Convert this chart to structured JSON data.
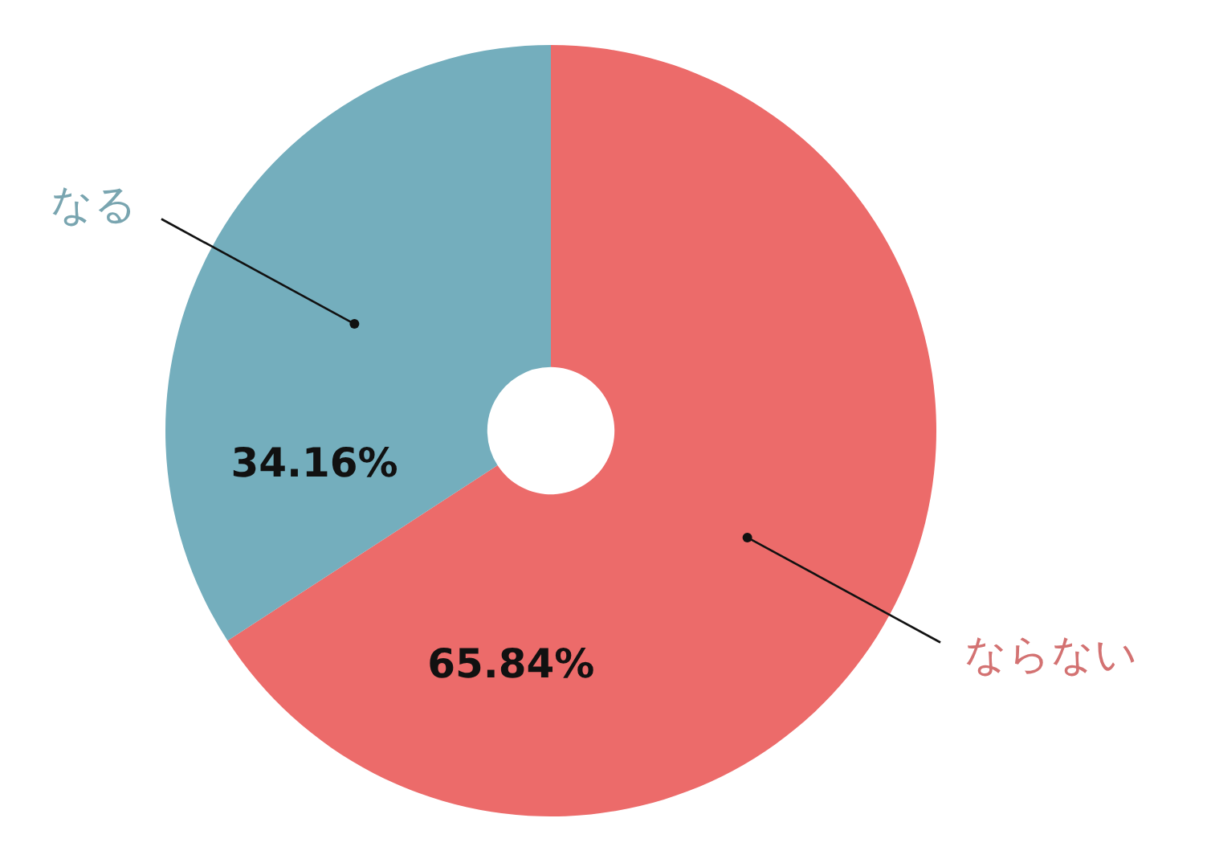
{
  "chart_data": {
    "type": "donut",
    "categories": [
      "ならない",
      "なる"
    ],
    "values": [
      65.84,
      34.16
    ],
    "colors": [
      "#ec6b6a",
      "#74aebd"
    ],
    "value_labels": [
      "65.84%",
      "34.16%"
    ]
  }
}
